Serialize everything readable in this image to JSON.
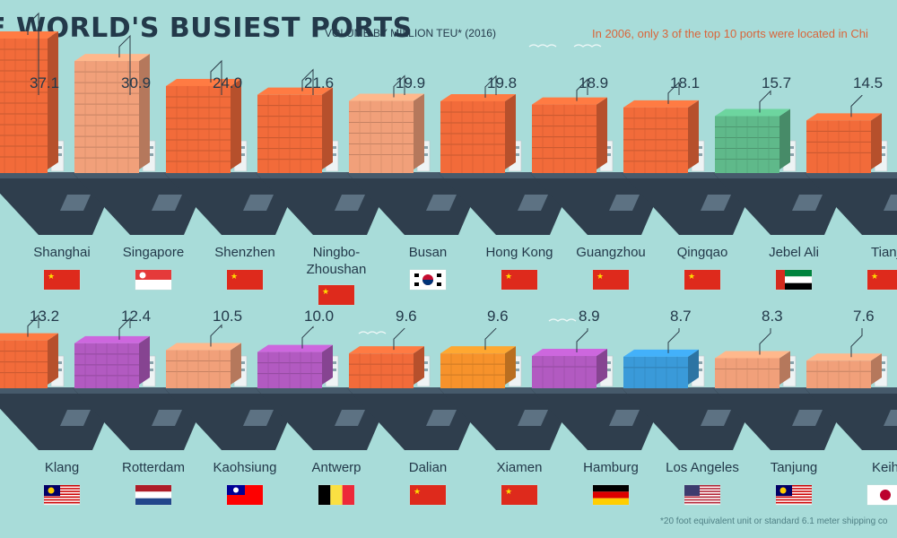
{
  "title": "E WORLD'S BUSIEST PORTS",
  "subtitle": "VOLUME BY MILLION TEU* (2016)",
  "note": "In 2006, only 3 of the top 10 ports were located in Chi",
  "footnote": "*20 foot equivalent unit or standard 6.1 meter shipping co",
  "colors": {
    "background": "#a8dcd9",
    "orange": "#f26b3a",
    "light_orange": "#f1a07a",
    "green": "#5fb98a",
    "purple": "#b25ac1",
    "bright_orange": "#f7922b",
    "blue": "#3a9ad9",
    "hull": "#2f3e4d",
    "text_dark": "#23394a",
    "accent": "#d9653a"
  },
  "chart_data": {
    "type": "bar",
    "title": "E WORLD'S BUSIEST PORTS",
    "subtitle": "VOLUME BY MILLION TEU* (2016)",
    "unit": "million TEU",
    "categories": [
      "Shanghai",
      "Singapore",
      "Shenzhen",
      "Ningbo-Zhoushan",
      "Busan",
      "Hong Kong",
      "Guangzhou",
      "Qingqao",
      "Jebel Ali",
      "Tianj",
      "Klang",
      "Rotterdam",
      "Kaohsiung",
      "Antwerp",
      "Dalian",
      "Xiamen",
      "Hamburg",
      "Los Angeles",
      "Tanjung",
      "Keih"
    ],
    "values": [
      37.1,
      30.9,
      24.0,
      21.6,
      19.9,
      19.8,
      18.9,
      18.1,
      15.7,
      14.5,
      13.2,
      12.4,
      10.5,
      10.0,
      9.6,
      9.6,
      8.9,
      8.7,
      8.3,
      7.6
    ],
    "value_labels": [
      "37.1",
      "30.9",
      "24.0",
      "21.6",
      "19.9",
      "19.8",
      "18.9",
      "18.1",
      "15.7",
      "14.5",
      "13.2",
      "12.4",
      "10.5",
      "10.0",
      "9.6",
      "9.6",
      "8.9",
      "8.7",
      "8.3",
      "7.6"
    ],
    "container_colors": [
      "orange",
      "light_orange",
      "orange",
      "orange",
      "light_orange",
      "orange",
      "orange",
      "orange",
      "green",
      "orange",
      "orange",
      "purple",
      "light_orange",
      "purple",
      "orange",
      "bright_orange",
      "purple",
      "blue",
      "light_orange",
      "light_orange"
    ],
    "flags": [
      "china",
      "singapore",
      "china",
      "china",
      "south-korea",
      "china",
      "china",
      "china",
      "uae",
      "china",
      "malaysia",
      "netherlands",
      "taiwan",
      "belgium",
      "china",
      "china",
      "germany",
      "usa",
      "malaysia",
      "japan"
    ]
  }
}
